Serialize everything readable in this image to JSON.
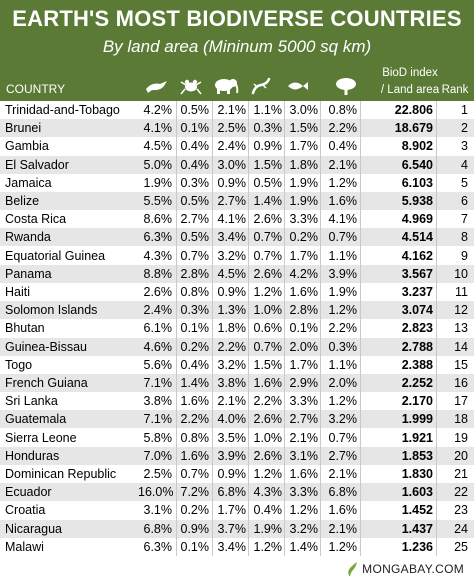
{
  "title": "EARTH'S MOST BIODIVERSE COUNTRIES",
  "subtitle": "By land area (Mininum 5000 sq km)",
  "columns": {
    "country": "COUNTRY",
    "biod_line1": "BioD index",
    "biod_line2": "/ Land area",
    "rank": "Rank"
  },
  "column_icons": [
    "bird-icon",
    "frog-icon",
    "elephant-icon",
    "lizard-icon",
    "fish-icon",
    "tree-icon"
  ],
  "colors": {
    "header_bg": "#5a7a35",
    "header_text": "#ffffff",
    "alt_row": "#e6e6e6"
  },
  "chart_data": {
    "type": "table",
    "title": "EARTH'S MOST BIODIVERSE COUNTRIES",
    "subtitle": "By land area (Mininum 5000 sq km)",
    "header_text": [
      "COUNTRY",
      "BioD index",
      "/ Land area",
      "Rank"
    ],
    "rows": [
      {
        "country": "Trinidad-and-Tobago",
        "values": [
          "4.2%",
          "0.5%",
          "2.1%",
          "1.1%",
          "3.0%",
          "0.8%"
        ],
        "biod": "22.806",
        "rank": "1"
      },
      {
        "country": "Brunei",
        "values": [
          "4.1%",
          "0.1%",
          "2.5%",
          "0.3%",
          "1.5%",
          "2.2%"
        ],
        "biod": "18.679",
        "rank": "2"
      },
      {
        "country": "Gambia",
        "values": [
          "4.5%",
          "0.4%",
          "2.4%",
          "0.9%",
          "1.7%",
          "0.4%"
        ],
        "biod": "8.902",
        "rank": "3"
      },
      {
        "country": "El Salvador",
        "values": [
          "5.0%",
          "0.4%",
          "3.0%",
          "1.5%",
          "1.8%",
          "2.1%"
        ],
        "biod": "6.540",
        "rank": "4"
      },
      {
        "country": "Jamaica",
        "values": [
          "1.9%",
          "0.3%",
          "0.9%",
          "0.5%",
          "1.9%",
          "1.2%"
        ],
        "biod": "6.103",
        "rank": "5"
      },
      {
        "country": "Belize",
        "values": [
          "5.5%",
          "0.5%",
          "2.7%",
          "1.4%",
          "1.9%",
          "1.6%"
        ],
        "biod": "5.938",
        "rank": "6"
      },
      {
        "country": "Costa Rica",
        "values": [
          "8.6%",
          "2.7%",
          "4.1%",
          "2.6%",
          "3.3%",
          "4.1%"
        ],
        "biod": "4.969",
        "rank": "7"
      },
      {
        "country": "Rwanda",
        "values": [
          "6.3%",
          "0.5%",
          "3.4%",
          "0.7%",
          "0.2%",
          "0.7%"
        ],
        "biod": "4.514",
        "rank": "8"
      },
      {
        "country": "Equatorial Guinea",
        "values": [
          "4.3%",
          "0.7%",
          "3.2%",
          "0.7%",
          "1.7%",
          "1.1%"
        ],
        "biod": "4.162",
        "rank": "9"
      },
      {
        "country": "Panama",
        "values": [
          "8.8%",
          "2.8%",
          "4.5%",
          "2.6%",
          "4.2%",
          "3.9%"
        ],
        "biod": "3.567",
        "rank": "10"
      },
      {
        "country": "Haiti",
        "values": [
          "2.6%",
          "0.8%",
          "0.9%",
          "1.2%",
          "1.6%",
          "1.9%"
        ],
        "biod": "3.237",
        "rank": "11"
      },
      {
        "country": "Solomon Islands",
        "values": [
          "2.4%",
          "0.3%",
          "1.3%",
          "1.0%",
          "2.8%",
          "1.2%"
        ],
        "biod": "3.074",
        "rank": "12"
      },
      {
        "country": "Bhutan",
        "values": [
          "6.1%",
          "0.1%",
          "1.8%",
          "0.6%",
          "0.1%",
          "2.2%"
        ],
        "biod": "2.823",
        "rank": "13"
      },
      {
        "country": "Guinea-Bissau",
        "values": [
          "4.6%",
          "0.2%",
          "2.2%",
          "0.7%",
          "2.0%",
          "0.3%"
        ],
        "biod": "2.788",
        "rank": "14"
      },
      {
        "country": "Togo",
        "values": [
          "5.6%",
          "0.4%",
          "3.2%",
          "1.5%",
          "1.7%",
          "1.1%"
        ],
        "biod": "2.388",
        "rank": "15"
      },
      {
        "country": "French Guiana",
        "values": [
          "7.1%",
          "1.4%",
          "3.8%",
          "1.6%",
          "2.9%",
          "2.0%"
        ],
        "biod": "2.252",
        "rank": "16"
      },
      {
        "country": "Sri Lanka",
        "values": [
          "3.8%",
          "1.6%",
          "2.1%",
          "2.2%",
          "3.3%",
          "1.2%"
        ],
        "biod": "2.170",
        "rank": "17"
      },
      {
        "country": "Guatemala",
        "values": [
          "7.1%",
          "2.2%",
          "4.0%",
          "2.6%",
          "2.7%",
          "3.2%"
        ],
        "biod": "1.999",
        "rank": "18"
      },
      {
        "country": "Sierra Leone",
        "values": [
          "5.8%",
          "0.8%",
          "3.5%",
          "1.0%",
          "2.1%",
          "0.7%"
        ],
        "biod": "1.921",
        "rank": "19"
      },
      {
        "country": "Honduras",
        "values": [
          "7.0%",
          "1.6%",
          "3.9%",
          "2.6%",
          "3.1%",
          "2.7%"
        ],
        "biod": "1.853",
        "rank": "20"
      },
      {
        "country": "Dominican Republic",
        "values": [
          "2.5%",
          "0.7%",
          "0.9%",
          "1.2%",
          "1.6%",
          "2.1%"
        ],
        "biod": "1.830",
        "rank": "21"
      },
      {
        "country": "Ecuador",
        "values": [
          "16.0%",
          "7.2%",
          "6.8%",
          "4.3%",
          "3.3%",
          "6.8%"
        ],
        "biod": "1.603",
        "rank": "22"
      },
      {
        "country": "Croatia",
        "values": [
          "3.1%",
          "0.2%",
          "1.7%",
          "0.4%",
          "1.2%",
          "1.6%"
        ],
        "biod": "1.452",
        "rank": "23"
      },
      {
        "country": "Nicaragua",
        "values": [
          "6.8%",
          "0.9%",
          "3.7%",
          "1.9%",
          "3.2%",
          "2.1%"
        ],
        "biod": "1.437",
        "rank": "24"
      },
      {
        "country": "Malawi",
        "values": [
          "6.3%",
          "0.1%",
          "3.4%",
          "1.2%",
          "1.4%",
          "1.2%"
        ],
        "biod": "1.236",
        "rank": "25"
      }
    ]
  },
  "footer": {
    "logo_text": "MONGABAY.COM"
  }
}
